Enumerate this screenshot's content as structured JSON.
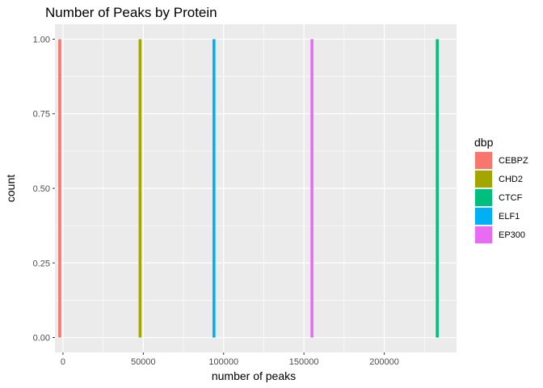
{
  "chart_data": {
    "type": "bar",
    "title": "Number of Peaks by Protein",
    "xlabel": "number of peaks",
    "ylabel": "count",
    "xlim": [
      -5000,
      245000
    ],
    "ylim": [
      -0.05,
      1.05
    ],
    "x_ticks": [
      0,
      50000,
      100000,
      150000,
      200000
    ],
    "x_tick_labels": [
      "0",
      "50000",
      "100000",
      "150000",
      "200000"
    ],
    "y_ticks": [
      0,
      0.25,
      0.5,
      0.75,
      1
    ],
    "y_tick_labels": [
      "0.00",
      "0.25",
      "0.50",
      "0.75",
      "1.00"
    ],
    "grid": true,
    "legend": {
      "title": "dbp",
      "position": "right"
    },
    "series": [
      {
        "name": "CEBPZ",
        "x": -2000,
        "count": 1,
        "color": "#F8766D"
      },
      {
        "name": "CHD2",
        "x": 48000,
        "count": 1,
        "color": "#A3A500"
      },
      {
        "name": "CTCF",
        "x": 233000,
        "count": 1,
        "color": "#00BF7D"
      },
      {
        "name": "ELF1",
        "x": 94000,
        "count": 1,
        "color": "#00B0F6"
      },
      {
        "name": "EP300",
        "x": 155000,
        "count": 1,
        "color": "#E76BF3"
      }
    ]
  }
}
